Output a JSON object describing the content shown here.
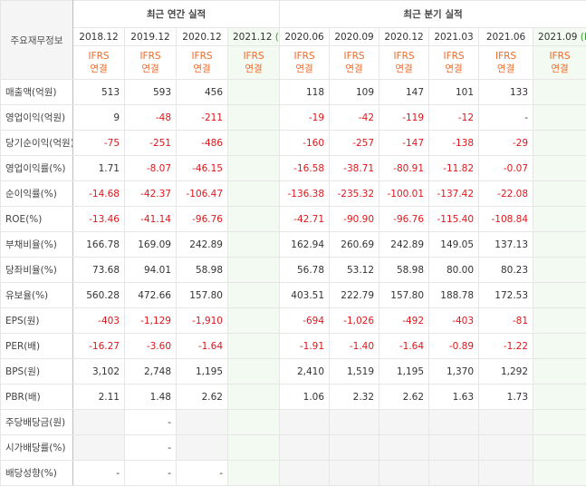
{
  "header": {
    "corner": "주요재무정보",
    "annual_group": "최근 연간 실적",
    "quarter_group": "최근 분기 실적"
  },
  "columns": [
    {
      "period": "2018.12",
      "standard": "IFRS",
      "scope": "연결"
    },
    {
      "period": "2019.12",
      "standard": "IFRS",
      "scope": "연결"
    },
    {
      "period": "2020.12",
      "standard": "IFRS",
      "scope": "연결"
    },
    {
      "period": "2021.12",
      "mark": "(E)",
      "standard": "IFRS",
      "scope": "연결"
    },
    {
      "period": "2020.06",
      "standard": "IFRS",
      "scope": "연결"
    },
    {
      "period": "2020.09",
      "standard": "IFRS",
      "scope": "연결"
    },
    {
      "period": "2020.12",
      "standard": "IFRS",
      "scope": "연결"
    },
    {
      "period": "2021.03",
      "standard": "IFRS",
      "scope": "연결"
    },
    {
      "period": "2021.06",
      "standard": "IFRS",
      "scope": "연결"
    },
    {
      "period": "2021.09",
      "mark": "(E)",
      "standard": "IFRS",
      "scope": "연결"
    }
  ],
  "rows": [
    {
      "label": "매출액(억원)",
      "values": [
        "513",
        "593",
        "456",
        null,
        "118",
        "109",
        "147",
        "101",
        "133",
        null
      ]
    },
    {
      "label": "영업이익(억원)",
      "values": [
        "9",
        "-48",
        "-211",
        null,
        "-19",
        "-42",
        "-119",
        "-12",
        "-",
        null
      ]
    },
    {
      "label": "당기순이익(억원)",
      "values": [
        "-75",
        "-251",
        "-486",
        null,
        "-160",
        "-257",
        "-147",
        "-138",
        "-29",
        null
      ]
    },
    {
      "label": "영업이익률(%)",
      "values": [
        "1.71",
        "-8.07",
        "-46.15",
        null,
        "-16.58",
        "-38.71",
        "-80.91",
        "-11.82",
        "-0.07",
        null
      ]
    },
    {
      "label": "순이익률(%)",
      "values": [
        "-14.68",
        "-42.37",
        "-106.47",
        null,
        "-136.38",
        "-235.32",
        "-100.01",
        "-137.42",
        "-22.08",
        null
      ]
    },
    {
      "label": "ROE(%)",
      "values": [
        "-13.46",
        "-41.14",
        "-96.76",
        null,
        "-42.71",
        "-90.90",
        "-96.76",
        "-115.40",
        "-108.84",
        null
      ]
    },
    {
      "label": "부채비율(%)",
      "values": [
        "166.78",
        "169.09",
        "242.89",
        null,
        "162.94",
        "260.69",
        "242.89",
        "149.05",
        "137.13",
        null
      ]
    },
    {
      "label": "당좌비율(%)",
      "values": [
        "73.68",
        "94.01",
        "58.98",
        null,
        "56.78",
        "53.12",
        "58.98",
        "80.00",
        "80.23",
        null
      ]
    },
    {
      "label": "유보율(%)",
      "values": [
        "560.28",
        "472.66",
        "157.80",
        null,
        "403.51",
        "222.79",
        "157.80",
        "188.78",
        "172.53",
        null
      ]
    },
    {
      "label": "EPS(원)",
      "values": [
        "-403",
        "-1,129",
        "-1,910",
        null,
        "-694",
        "-1,026",
        "-492",
        "-403",
        "-81",
        null
      ]
    },
    {
      "label": "PER(배)",
      "values": [
        "-16.27",
        "-3.60",
        "-1.64",
        null,
        "-1.91",
        "-1.40",
        "-1.64",
        "-0.89",
        "-1.22",
        null
      ]
    },
    {
      "label": "BPS(원)",
      "values": [
        "3,102",
        "2,748",
        "1,195",
        null,
        "2,410",
        "1,519",
        "1,195",
        "1,370",
        "1,292",
        null
      ]
    },
    {
      "label": "PBR(배)",
      "values": [
        "2.11",
        "1.48",
        "2.62",
        null,
        "1.06",
        "2.32",
        "2.62",
        "1.63",
        "1.73",
        null
      ]
    },
    {
      "label": "주당배당금(원)",
      "values": [
        null,
        "-",
        null,
        null,
        null,
        null,
        null,
        null,
        null,
        null
      ]
    },
    {
      "label": "시가배당률(%)",
      "values": [
        null,
        "-",
        null,
        null,
        null,
        null,
        null,
        null,
        null,
        null
      ]
    },
    {
      "label": "배당성향(%)",
      "values": [
        "-",
        "-",
        "-",
        null,
        null,
        null,
        null,
        null,
        null,
        null
      ]
    }
  ]
}
